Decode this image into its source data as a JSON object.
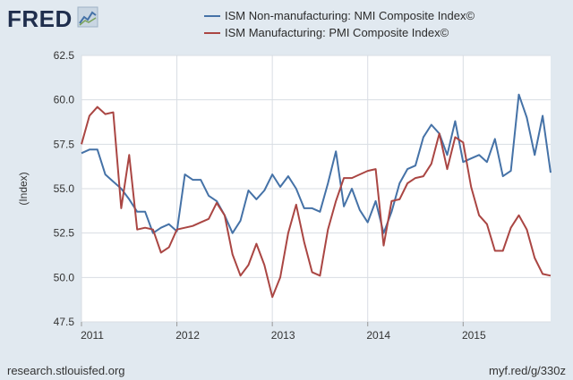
{
  "brand": {
    "name": "FRED",
    "mark_icon": "line-graph-icon"
  },
  "footer": {
    "source": "research.stlouisfed.org",
    "link": "myf.red/g/330z"
  },
  "colors": {
    "background": "#e1e9f0",
    "plot_background": "#ffffff",
    "grid": "#d8dde3",
    "nmi": "#4572a7",
    "pmi": "#aa4643",
    "logo": "#1f2e4d"
  },
  "chart_data": {
    "type": "line",
    "ylabel": "(Index)",
    "ylim": [
      47.5,
      62.5
    ],
    "yticks": [
      "47.5",
      "50.0",
      "52.5",
      "55.0",
      "57.5",
      "60.0",
      "62.5"
    ],
    "xlim": [
      "2011-01",
      "2015-12"
    ],
    "xticks": [
      "2011",
      "2012",
      "2013",
      "2014",
      "2015"
    ],
    "grid": true,
    "legend_position": "top",
    "series": [
      {
        "name": "ISM Non-manufacturing: NMI Composite Index©",
        "color": "#4572a7",
        "x": [
          "2011-01",
          "2011-02",
          "2011-03",
          "2011-04",
          "2011-05",
          "2011-06",
          "2011-07",
          "2011-08",
          "2011-09",
          "2011-10",
          "2011-11",
          "2011-12",
          "2012-01",
          "2012-02",
          "2012-03",
          "2012-04",
          "2012-05",
          "2012-06",
          "2012-07",
          "2012-08",
          "2012-09",
          "2012-10",
          "2012-11",
          "2012-12",
          "2013-01",
          "2013-02",
          "2013-03",
          "2013-04",
          "2013-05",
          "2013-06",
          "2013-07",
          "2013-08",
          "2013-09",
          "2013-10",
          "2013-11",
          "2013-12",
          "2014-01",
          "2014-02",
          "2014-03",
          "2014-04",
          "2014-05",
          "2014-06",
          "2014-07",
          "2014-08",
          "2014-09",
          "2014-10",
          "2014-11",
          "2014-12",
          "2015-01",
          "2015-02",
          "2015-03",
          "2015-04",
          "2015-05",
          "2015-06",
          "2015-07",
          "2015-08",
          "2015-09",
          "2015-10",
          "2015-11",
          "2015-12"
        ],
        "values": [
          57.0,
          57.2,
          57.2,
          55.8,
          55.4,
          55.0,
          54.4,
          53.7,
          53.7,
          52.5,
          52.8,
          53.0,
          52.6,
          55.8,
          55.5,
          55.5,
          54.6,
          54.3,
          53.5,
          52.5,
          53.2,
          54.9,
          54.4,
          54.9,
          55.8,
          55.1,
          55.7,
          55.0,
          53.9,
          53.9,
          53.7,
          55.3,
          57.1,
          54.0,
          55.0,
          53.8,
          53.1,
          54.3,
          52.5,
          53.7,
          55.3,
          56.1,
          56.3,
          57.9,
          58.6,
          58.1,
          56.9,
          58.8,
          56.5,
          56.7,
          56.9,
          56.5,
          57.8,
          55.7,
          56.0,
          60.3,
          59.0,
          56.9,
          59.1,
          55.9
        ]
      },
      {
        "name": "ISM Manufacturing: PMI Composite Index©",
        "color": "#aa4643",
        "x": [
          "2011-01",
          "2011-02",
          "2011-03",
          "2011-04",
          "2011-05",
          "2011-06",
          "2011-07",
          "2011-08",
          "2011-09",
          "2011-10",
          "2011-11",
          "2011-12",
          "2012-01",
          "2012-02",
          "2012-03",
          "2012-04",
          "2012-05",
          "2012-06",
          "2012-07",
          "2012-08",
          "2012-09",
          "2012-10",
          "2012-11",
          "2012-12",
          "2013-01",
          "2013-02",
          "2013-03",
          "2013-04",
          "2013-05",
          "2013-06",
          "2013-07",
          "2013-08",
          "2013-09",
          "2013-10",
          "2013-11",
          "2013-12",
          "2014-01",
          "2014-02",
          "2014-03",
          "2014-04",
          "2014-05",
          "2014-06",
          "2014-07",
          "2014-08",
          "2014-09",
          "2014-10",
          "2014-11",
          "2014-12",
          "2015-01",
          "2015-02",
          "2015-03",
          "2015-04",
          "2015-05",
          "2015-06",
          "2015-07",
          "2015-08",
          "2015-09",
          "2015-10",
          "2015-11",
          "2015-12"
        ],
        "values": [
          57.5,
          59.1,
          59.6,
          59.2,
          59.3,
          53.9,
          56.9,
          52.7,
          52.8,
          52.7,
          51.4,
          51.7,
          52.7,
          52.8,
          52.9,
          53.1,
          53.3,
          54.2,
          53.5,
          51.3,
          50.1,
          50.7,
          51.9,
          50.7,
          48.9,
          50.0,
          52.5,
          54.1,
          52.0,
          50.3,
          50.1,
          52.7,
          54.3,
          55.6,
          55.6,
          55.8,
          56.0,
          56.1,
          51.8,
          54.3,
          54.4,
          55.3,
          55.6,
          55.7,
          56.4,
          58.1,
          56.1,
          57.9,
          57.6,
          55.1,
          53.5,
          53.0,
          51.5,
          51.5,
          52.8,
          53.5,
          52.7,
          51.1,
          50.2,
          50.1
        ]
      }
    ]
  }
}
